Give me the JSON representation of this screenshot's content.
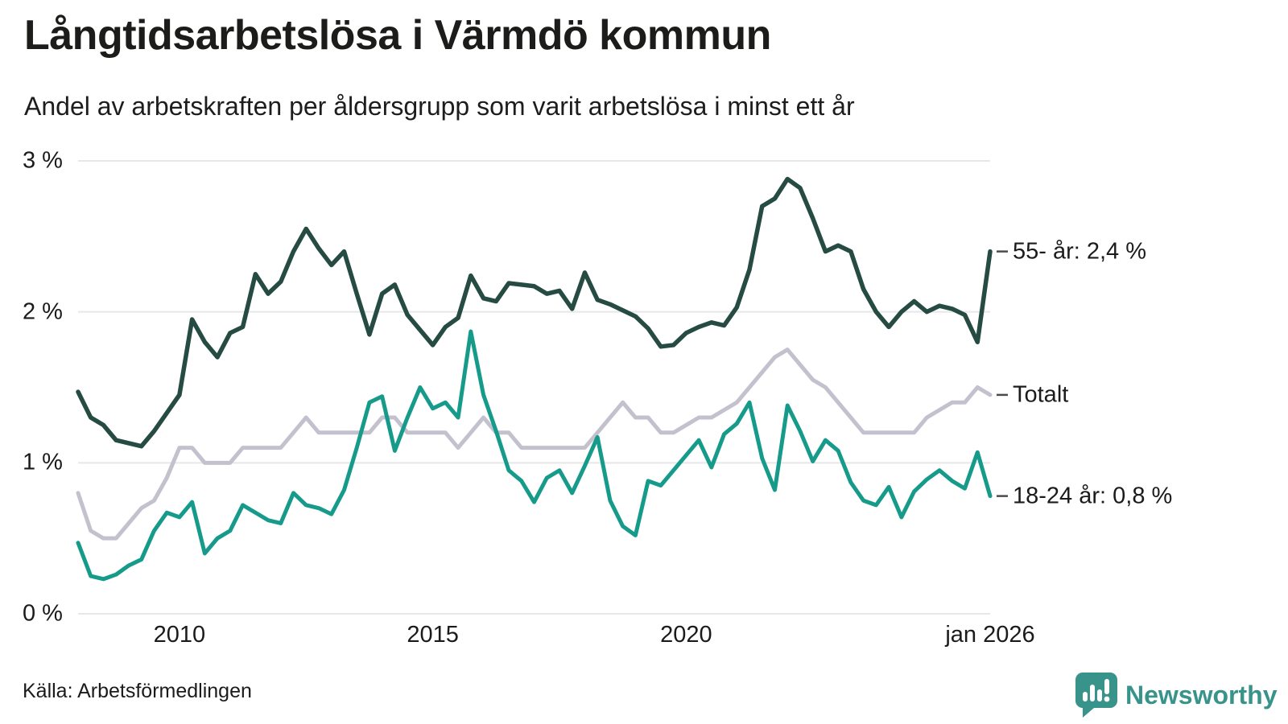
{
  "header": {
    "title": "Långtidsarbetslösa i Värmdö kommun",
    "subtitle": "Andel av arbetskraften per åldersgrupp som varit arbetslösa i minst ett år"
  },
  "footer": {
    "source": "Källa: Arbetsförmedlingen",
    "brand": "Newsworthy"
  },
  "colors": {
    "grid": "#e7e7ea",
    "label_dash": "#4b4b4b",
    "text": "#1b1b1b",
    "brand": "#38948a",
    "series_55": "#254b42",
    "series_total": "#c4c1ce",
    "series_1824": "#169b8b"
  },
  "chart_data": {
    "type": "line",
    "title": "Långtidsarbetslösa i Värmdö kommun",
    "subtitle": "Andel av arbetskraften per åldersgrupp som varit arbetslösa i minst ett år",
    "unit": "%",
    "grid": true,
    "legend_position": "end-of-line-right",
    "ylim": [
      0,
      3
    ],
    "xlim": [
      2008,
      2026.08
    ],
    "yticks": [
      {
        "value": 0,
        "label": "0 %"
      },
      {
        "value": 1,
        "label": "1 %"
      },
      {
        "value": 2,
        "label": "2 %"
      },
      {
        "value": 3,
        "label": "3 %"
      }
    ],
    "xticks": [
      {
        "value": 2010,
        "label": "2010"
      },
      {
        "value": 2015,
        "label": "2015"
      },
      {
        "value": 2020,
        "label": "2020"
      },
      {
        "value": 2026,
        "label": "jan 2026"
      }
    ],
    "x": [
      2008,
      2008.25,
      2008.5,
      2008.75,
      2009,
      2009.25,
      2009.5,
      2009.75,
      2010,
      2010.25,
      2010.5,
      2010.75,
      2011,
      2011.25,
      2011.5,
      2011.75,
      2012,
      2012.25,
      2012.5,
      2012.75,
      2013,
      2013.25,
      2013.5,
      2013.75,
      2014,
      2014.25,
      2014.5,
      2014.75,
      2015,
      2015.25,
      2015.5,
      2015.75,
      2016,
      2016.25,
      2016.5,
      2016.75,
      2017,
      2017.25,
      2017.5,
      2017.75,
      2018,
      2018.25,
      2018.5,
      2018.75,
      2019,
      2019.25,
      2019.5,
      2019.75,
      2020,
      2020.25,
      2020.5,
      2020.75,
      2021,
      2021.25,
      2021.5,
      2021.75,
      2022,
      2022.25,
      2022.5,
      2022.75,
      2023,
      2023.25,
      2023.5,
      2023.75,
      2024,
      2024.25,
      2024.5,
      2024.75,
      2025,
      2025.25,
      2025.5,
      2025.75,
      2026
    ],
    "series": [
      {
        "name": "Totalt",
        "end_label": "Totalt",
        "color": "#c4c1ce",
        "stroke_width": 5,
        "values": [
          0.8,
          0.55,
          0.5,
          0.5,
          0.6,
          0.7,
          0.75,
          0.9,
          1.1,
          1.1,
          1.0,
          1.0,
          1.0,
          1.1,
          1.1,
          1.1,
          1.1,
          1.2,
          1.3,
          1.2,
          1.2,
          1.2,
          1.2,
          1.2,
          1.3,
          1.3,
          1.2,
          1.2,
          1.2,
          1.2,
          1.1,
          1.2,
          1.3,
          1.2,
          1.2,
          1.1,
          1.1,
          1.1,
          1.1,
          1.1,
          1.1,
          1.2,
          1.3,
          1.4,
          1.3,
          1.3,
          1.2,
          1.2,
          1.25,
          1.3,
          1.3,
          1.35,
          1.4,
          1.5,
          1.6,
          1.7,
          1.75,
          1.65,
          1.55,
          1.5,
          1.4,
          1.3,
          1.2,
          1.2,
          1.2,
          1.2,
          1.2,
          1.3,
          1.35,
          1.4,
          1.4,
          1.5,
          1.45
        ]
      },
      {
        "name": "55- år",
        "end_label": "55- år: 2,4 %",
        "color": "#254b42",
        "stroke_width": 5.5,
        "values": [
          1.47,
          1.3,
          1.25,
          1.15,
          1.13,
          1.11,
          1.21,
          1.33,
          1.45,
          1.95,
          1.8,
          1.7,
          1.86,
          1.9,
          2.25,
          2.12,
          2.2,
          2.4,
          2.55,
          2.42,
          2.31,
          2.4,
          2.12,
          1.85,
          2.12,
          2.18,
          1.98,
          1.88,
          1.78,
          1.9,
          1.96,
          2.24,
          2.09,
          2.07,
          2.19,
          2.18,
          2.17,
          2.12,
          2.14,
          2.02,
          2.26,
          2.08,
          2.05,
          2.01,
          1.97,
          1.89,
          1.77,
          1.78,
          1.86,
          1.9,
          1.93,
          1.91,
          2.03,
          2.28,
          2.7,
          2.75,
          2.88,
          2.82,
          2.62,
          2.4,
          2.44,
          2.4,
          2.15,
          2.0,
          1.9,
          2.0,
          2.07,
          2.0,
          2.04,
          2.02,
          1.98,
          1.8,
          2.4
        ]
      },
      {
        "name": "18-24 år",
        "end_label": "18-24 år: 0,8 %",
        "color": "#169b8b",
        "stroke_width": 5,
        "values": [
          0.47,
          0.25,
          0.23,
          0.26,
          0.32,
          0.36,
          0.55,
          0.67,
          0.64,
          0.74,
          0.4,
          0.5,
          0.55,
          0.72,
          0.67,
          0.62,
          0.6,
          0.8,
          0.72,
          0.7,
          0.66,
          0.82,
          1.1,
          1.4,
          1.44,
          1.08,
          1.3,
          1.5,
          1.36,
          1.4,
          1.3,
          1.87,
          1.45,
          1.21,
          0.95,
          0.88,
          0.74,
          0.9,
          0.95,
          0.8,
          0.98,
          1.17,
          0.75,
          0.58,
          0.52,
          0.88,
          0.85,
          0.95,
          1.05,
          1.15,
          0.97,
          1.19,
          1.26,
          1.4,
          1.03,
          0.82,
          1.38,
          1.21,
          1.01,
          1.15,
          1.08,
          0.87,
          0.75,
          0.72,
          0.84,
          0.64,
          0.81,
          0.89,
          0.95,
          0.88,
          0.83,
          1.07,
          0.78
        ]
      }
    ]
  }
}
